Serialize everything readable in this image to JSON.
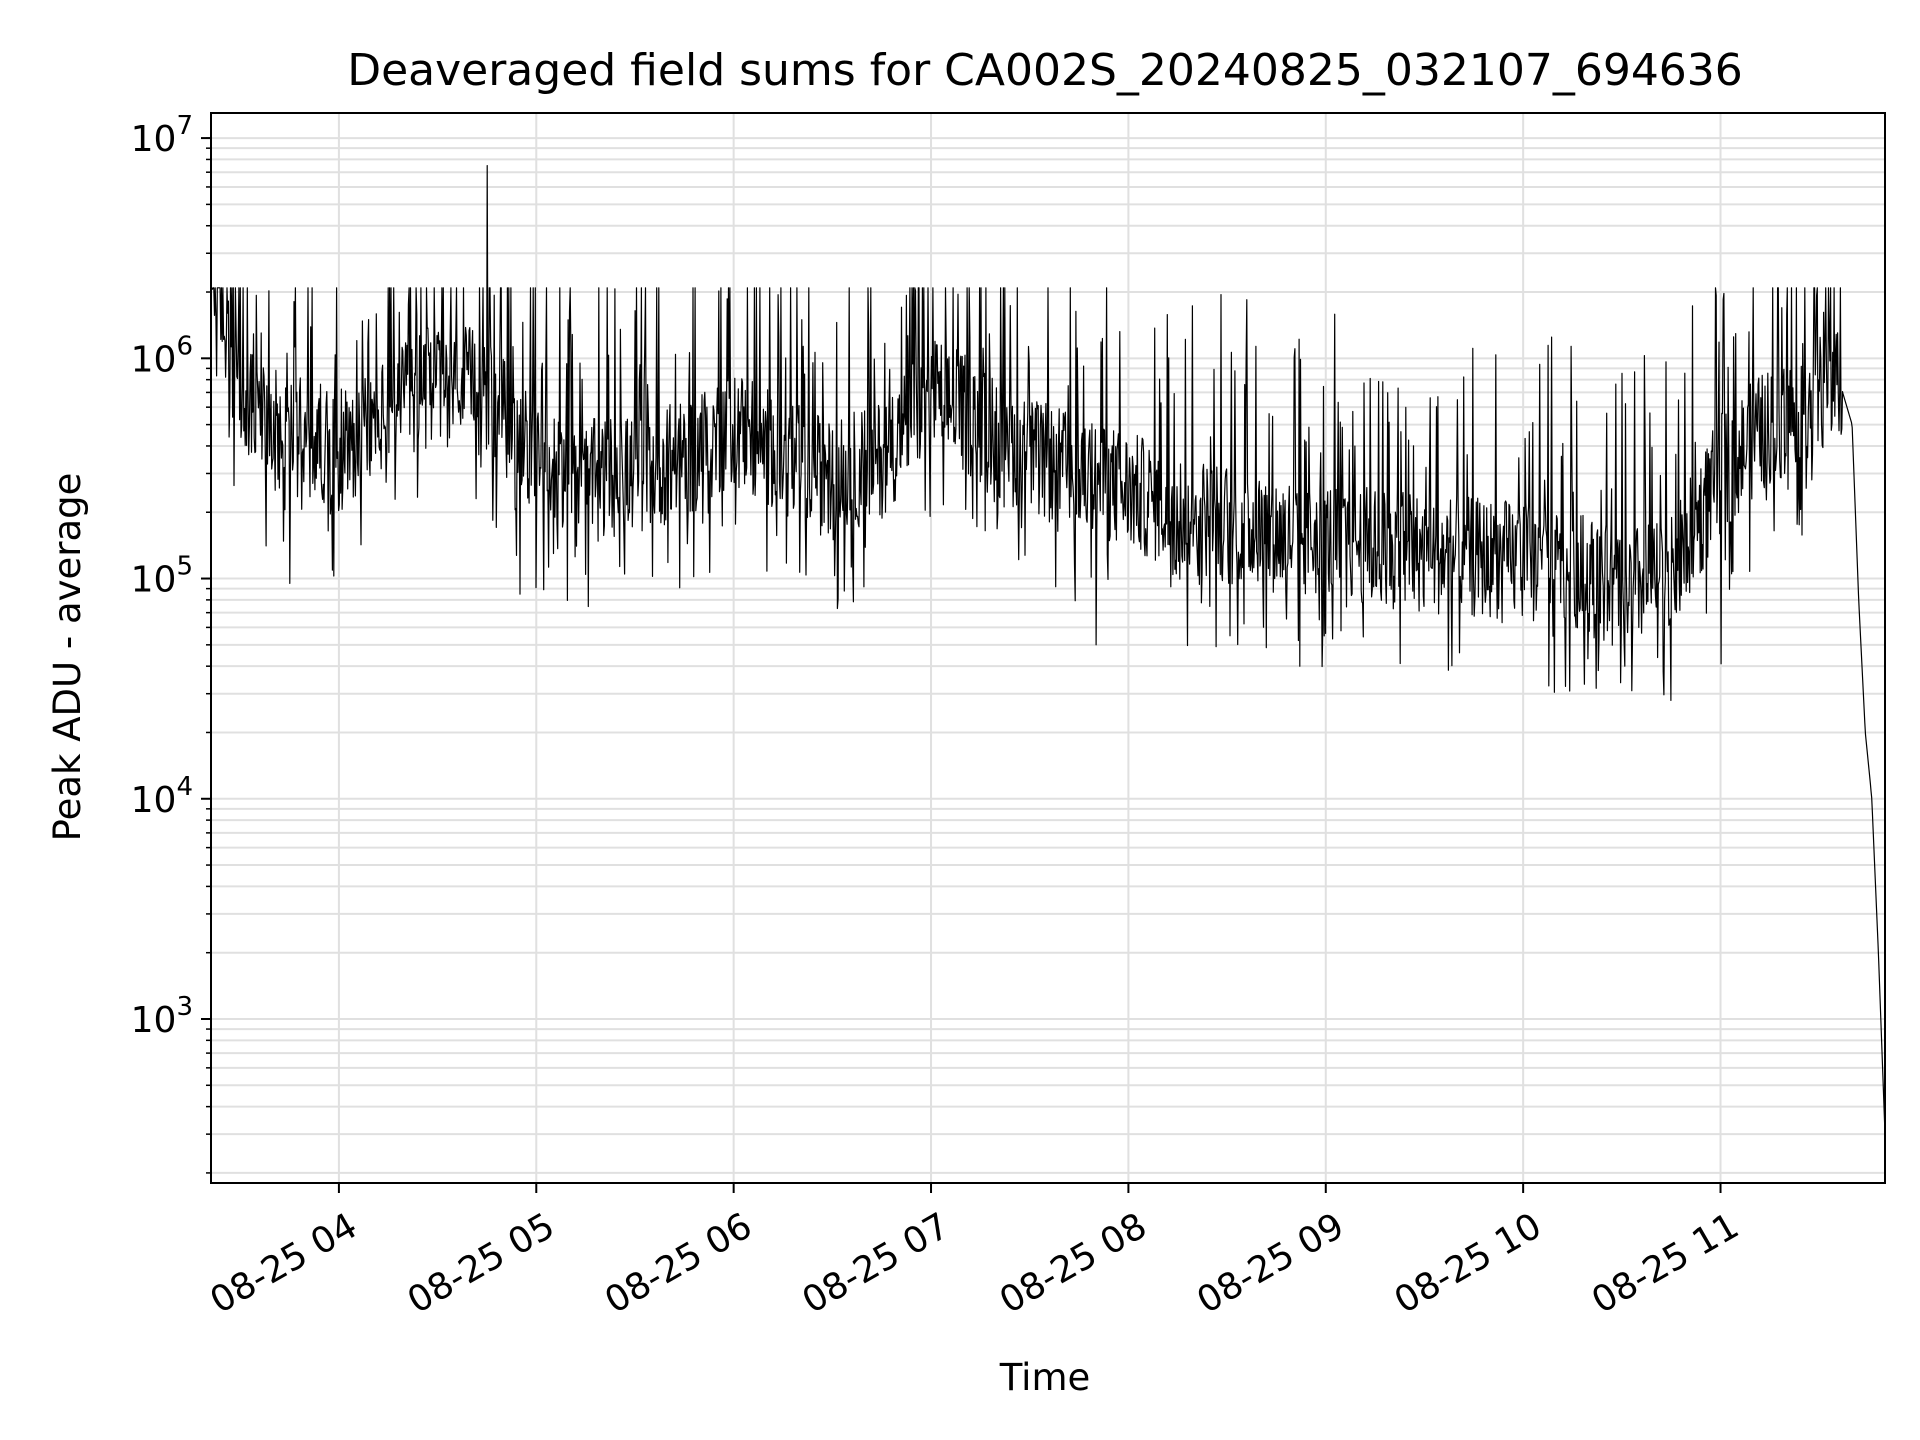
{
  "chart_data": {
    "type": "line",
    "title": "Deaveraged field sums for CA002S_20240825_032107_694636",
    "xlabel": "Time",
    "ylabel": "Peak ADU - average",
    "x_axis": {
      "kind": "datetime",
      "range": [
        "2024-08-25T03:21:07",
        "2024-08-25T11:50:00"
      ],
      "ticks": [
        {
          "value": "2024-08-25T04:00:00",
          "label": "08-25 04"
        },
        {
          "value": "2024-08-25T05:00:00",
          "label": "08-25 05"
        },
        {
          "value": "2024-08-25T06:00:00",
          "label": "08-25 06"
        },
        {
          "value": "2024-08-25T07:00:00",
          "label": "08-25 07"
        },
        {
          "value": "2024-08-25T08:00:00",
          "label": "08-25 08"
        },
        {
          "value": "2024-08-25T09:00:00",
          "label": "08-25 09"
        },
        {
          "value": "2024-08-25T10:00:00",
          "label": "08-25 10"
        },
        {
          "value": "2024-08-25T11:00:00",
          "label": "08-25 11"
        }
      ]
    },
    "y_axis": {
      "scale": "log",
      "range": [
        180,
        13000000
      ],
      "ticks": [
        {
          "value": 1000,
          "base": "10",
          "exp": "3"
        },
        {
          "value": 10000,
          "base": "10",
          "exp": "4"
        },
        {
          "value": 100000,
          "base": "10",
          "exp": "5"
        },
        {
          "value": 1000000,
          "base": "10",
          "exp": "6"
        },
        {
          "value": 10000000,
          "base": "10",
          "exp": "7"
        }
      ]
    },
    "grid": true,
    "grid_minor": true,
    "line_color": "#000000",
    "grid_color": "#e0e0e0",
    "series": [
      {
        "x": [
          "2024-08-25T03:21:07",
          "2024-08-25T03:30:00",
          "2024-08-25T03:45:00",
          "2024-08-25T04:00:00",
          "2024-08-25T04:15:00",
          "2024-08-25T04:30:00",
          "2024-08-25T04:45:00",
          "2024-08-25T05:00:00",
          "2024-08-25T05:15:00",
          "2024-08-25T05:30:00",
          "2024-08-25T05:45:00",
          "2024-08-25T06:00:00",
          "2024-08-25T06:15:00",
          "2024-08-25T06:30:00",
          "2024-08-25T06:45:00",
          "2024-08-25T07:00:00",
          "2024-08-25T07:15:00",
          "2024-08-25T07:30:00",
          "2024-08-25T07:45:00",
          "2024-08-25T08:00:00",
          "2024-08-25T08:15:00",
          "2024-08-25T08:30:00",
          "2024-08-25T08:45:00",
          "2024-08-25T09:00:00",
          "2024-08-25T09:15:00",
          "2024-08-25T09:30:00",
          "2024-08-25T09:45:00",
          "2024-08-25T10:00:00",
          "2024-08-25T10:15:00",
          "2024-08-25T10:30:00",
          "2024-08-25T10:45:00",
          "2024-08-25T11:00:00",
          "2024-08-25T11:15:00",
          "2024-08-25T11:30:00",
          "2024-08-25T11:36:00",
          "2024-08-25T11:40:00",
          "2024-08-25T11:42:00",
          "2024-08-25T11:44:00",
          "2024-08-25T11:46:00",
          "2024-08-25T11:48:00",
          "2024-08-25T11:50:00"
        ],
        "y": [
          3000000,
          600000,
          450000,
          400000,
          550000,
          800000,
          700000,
          350000,
          280000,
          300000,
          350000,
          500000,
          350000,
          280000,
          350000,
          700000,
          500000,
          350000,
          300000,
          250000,
          200000,
          180000,
          160000,
          150000,
          140000,
          130000,
          125000,
          120000,
          110000,
          90000,
          100000,
          300000,
          500000,
          700000,
          800000,
          500000,
          80000,
          20000,
          10000,
          2000,
          300
        ]
      }
    ],
    "highlights": [
      {
        "x": "2024-08-25T04:45:00",
        "y": 7500000
      },
      {
        "x": "2024-08-25T03:45:00",
        "y": 95000
      },
      {
        "x": "2024-08-25T04:55:00",
        "y": 85000
      },
      {
        "x": "2024-08-25T07:50:00",
        "y": 50000
      },
      {
        "x": "2024-08-25T11:00:00",
        "y": 41000
      }
    ]
  }
}
